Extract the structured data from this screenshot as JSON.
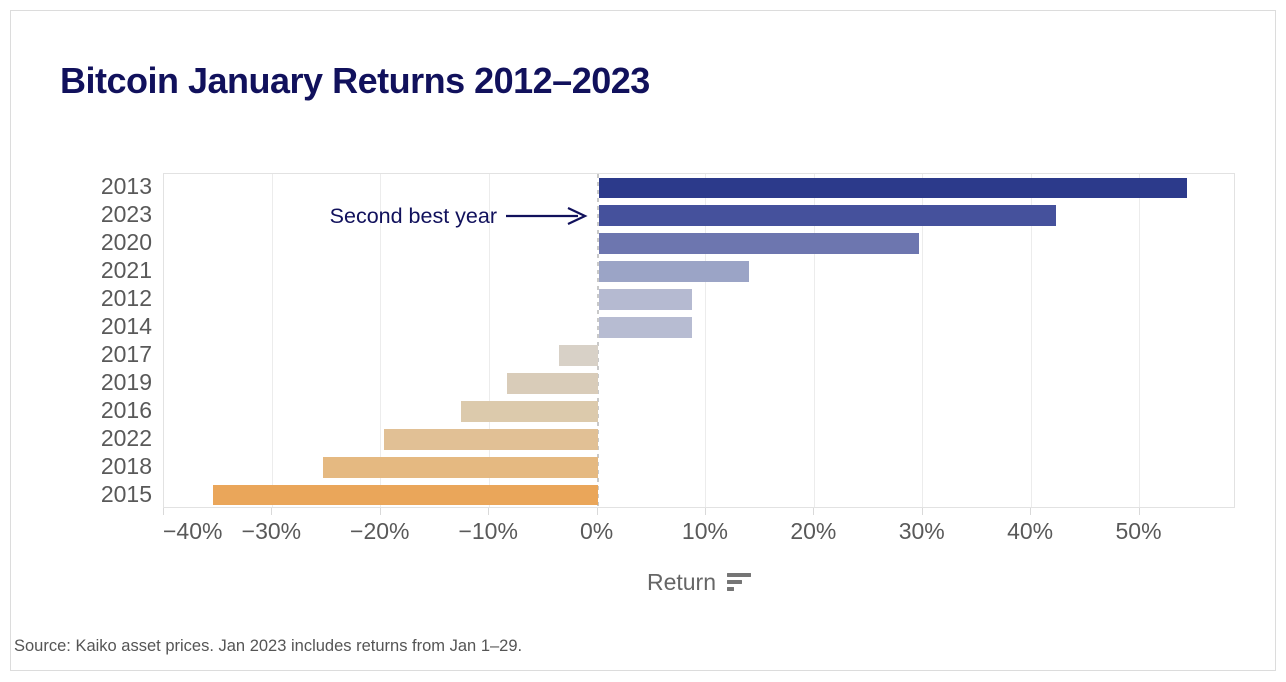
{
  "page": {
    "title": "Bitcoin January Returns 2012–2023",
    "source_note": "Source: Kaiko asset prices. Jan 2023 includes returns from Jan 1–29."
  },
  "annotation": {
    "text": "Second best year",
    "points_to_year": "2023"
  },
  "x_axis": {
    "title": "Return",
    "icon": "sort-descending-bars-icon"
  },
  "colors": {
    "title_navy": "#11115c",
    "annotation_navy": "#11115c",
    "axis_text_gray": "#595959",
    "axis_title_gray": "#666666",
    "gridline": "#ececec",
    "zero_line": "#c9c9c9",
    "plot_border": "#e2e2e2",
    "card_border": "#dcdcdc",
    "sort_icon_gray": "#757575"
  },
  "chart_data": {
    "type": "bar",
    "orientation": "horizontal",
    "sorted": "descending by value",
    "title": "Bitcoin January Returns 2012–2023",
    "xlabel": "Return",
    "ylabel": "",
    "grid": true,
    "legend": false,
    "zero_line_style": "dashed",
    "xlim": [
      -40,
      58.9
    ],
    "x_ticks": [
      {
        "value": -40,
        "label": "−40%"
      },
      {
        "value": -30,
        "label": "−30%"
      },
      {
        "value": -20,
        "label": "−20%"
      },
      {
        "value": -10,
        "label": "−10%"
      },
      {
        "value": 0,
        "label": "0%"
      },
      {
        "value": 10,
        "label": "10%"
      },
      {
        "value": 20,
        "label": "20%"
      },
      {
        "value": 30,
        "label": "30%"
      },
      {
        "value": 40,
        "label": "40%"
      },
      {
        "value": 50,
        "label": "50%"
      }
    ],
    "categories": [
      "2013",
      "2023",
      "2020",
      "2021",
      "2012",
      "2014",
      "2017",
      "2019",
      "2016",
      "2022",
      "2018",
      "2015"
    ],
    "values": [
      54.3,
      42.2,
      29.6,
      13.9,
      8.6,
      8.6,
      -3.6,
      -8.4,
      -12.6,
      -19.7,
      -25.3,
      -35.5
    ],
    "units": "percent",
    "bar_colors": [
      "#2c3a8b",
      "#45519c",
      "#6d76af",
      "#9ba4c6",
      "#b5bad1",
      "#b7bcd2",
      "#d8d1c7",
      "#d9ccb9",
      "#dccaac",
      "#e1c095",
      "#e5b981",
      "#eaa65a"
    ],
    "annotations": [
      {
        "text": "Second best year",
        "target_category": "2023",
        "arrow": "right"
      }
    ]
  }
}
